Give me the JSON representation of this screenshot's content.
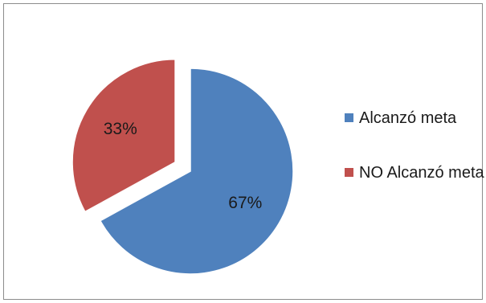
{
  "chart_data": {
    "type": "pie",
    "title": "",
    "exploded": true,
    "legend_position": "right",
    "slices": [
      {
        "label": "Alcanzó meta",
        "value": 67,
        "display": "67%",
        "color": "#4f81bd"
      },
      {
        "label": "NO Alcanzó meta",
        "value": 33,
        "display": "33%",
        "color": "#c0504d"
      }
    ]
  }
}
